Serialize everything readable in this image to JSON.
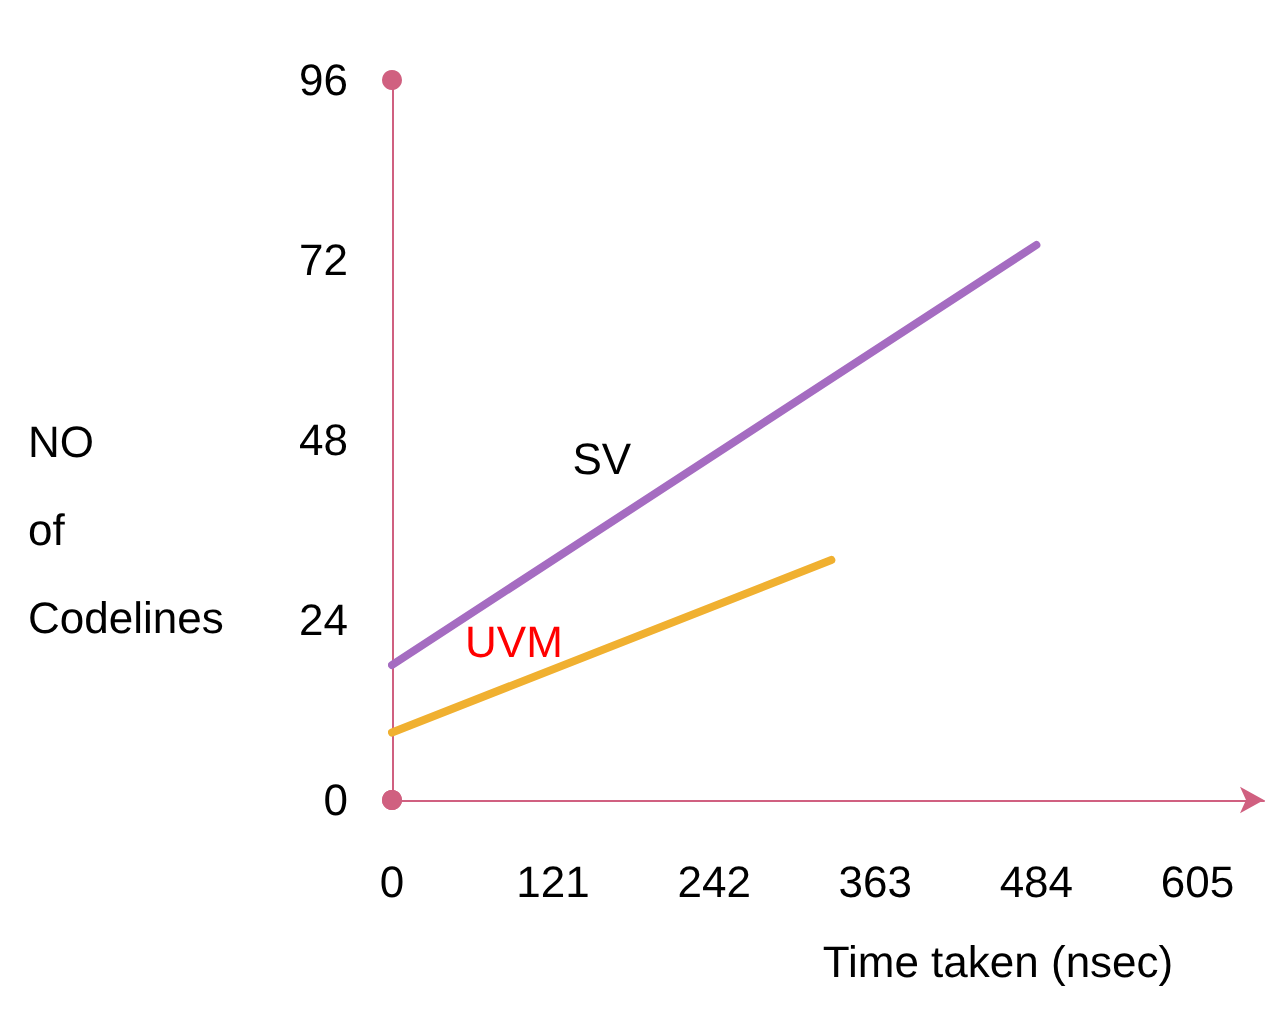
{
  "chart_data": {
    "type": "line",
    "xlabel": "Time taken (nsec)",
    "ylabel": "NO of Codelines",
    "xlim": [
      0,
      655
    ],
    "xticks": [
      0,
      121,
      242,
      363,
      484,
      605
    ],
    "ylim": [
      0,
      96
    ],
    "yticks": [
      0,
      24,
      48,
      72,
      96
    ],
    "grid": false,
    "legend": false,
    "marker": "none",
    "line_style": "solid",
    "series": [
      {
        "name": "SV",
        "color": "#a56cc1",
        "x": [
          0,
          484
        ],
        "values": [
          18,
          74
        ]
      },
      {
        "name": "UVM",
        "color": "#f0b030",
        "x": [
          0,
          330
        ],
        "values": [
          9,
          32
        ]
      }
    ]
  }
}
